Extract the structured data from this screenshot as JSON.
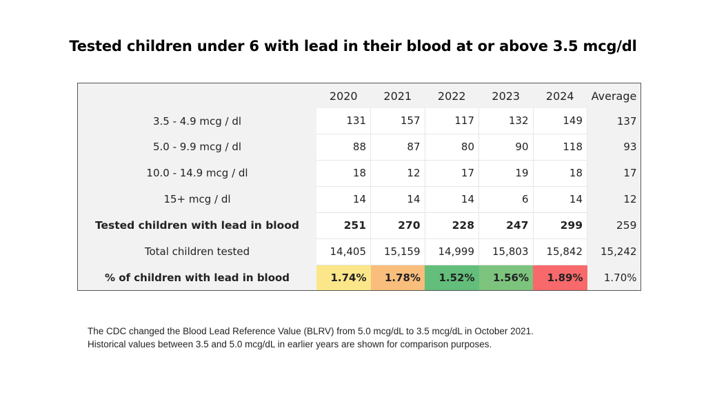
{
  "title": "Tested children under 6 with lead in their blood at or above 3.5 mcg/dl",
  "table": {
    "headers": [
      "2020",
      "2021",
      "2022",
      "2023",
      "2024",
      "Average"
    ],
    "rows": [
      {
        "label": "3.5 - 4.9 mcg / dl",
        "values": [
          "131",
          "157",
          "117",
          "132",
          "149"
        ],
        "average": "137"
      },
      {
        "label": "5.0 - 9.9 mcg / dl",
        "values": [
          "88",
          "87",
          "80",
          "90",
          "118"
        ],
        "average": "93"
      },
      {
        "label": "10.0 - 14.9 mcg / dl",
        "values": [
          "18",
          "12",
          "17",
          "19",
          "18"
        ],
        "average": "17"
      },
      {
        "label": "15+ mcg / dl",
        "values": [
          "14",
          "14",
          "14",
          "6",
          "14"
        ],
        "average": "12"
      },
      {
        "label": "Tested children with lead in blood",
        "values": [
          "251",
          "270",
          "228",
          "247",
          "299"
        ],
        "average": "259"
      },
      {
        "label": "Total children tested",
        "values": [
          "14,405",
          "15,159",
          "14,999",
          "15,803",
          "15,842"
        ],
        "average": "15,242"
      },
      {
        "label": "% of children with lead in blood",
        "values": [
          "1.74%",
          "1.78%",
          "1.52%",
          "1.56%",
          "1.89%"
        ],
        "average": "1.70%"
      }
    ],
    "percent_row_colors": [
      "#fbe78a",
      "#f9bd7c",
      "#63be7b",
      "#7cc47e",
      "#f8696b"
    ]
  },
  "note": {
    "line1": "The CDC changed the Blood Lead Reference Value (BLRV) from 5.0 mcg/dL to 3.5 mcg/dL in October 2021.",
    "line2": "Historical values between 3.5 and 5.0 mcg/dL in earlier years are shown for comparison purposes."
  }
}
